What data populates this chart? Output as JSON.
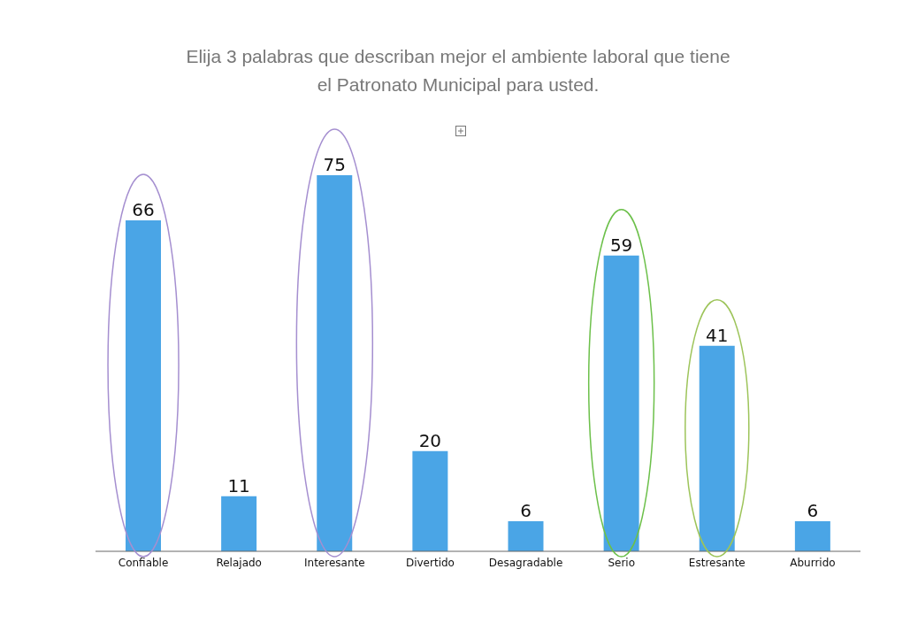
{
  "chart_data": {
    "type": "bar",
    "title": "Elija 3 palabras que describan mejor el ambiente laboral que tiene el Patronato Municipal para usted.",
    "categories": [
      "Confiable",
      "Relajado",
      "Interesante",
      "Divertido",
      "Desagradable",
      "Serio",
      "Estresante",
      "Aburrido"
    ],
    "values": [
      66,
      11,
      75,
      20,
      6,
      59,
      41,
      6
    ],
    "color": "#4aa5e6",
    "data_labels": true,
    "grid": false,
    "legend": false
  }
}
